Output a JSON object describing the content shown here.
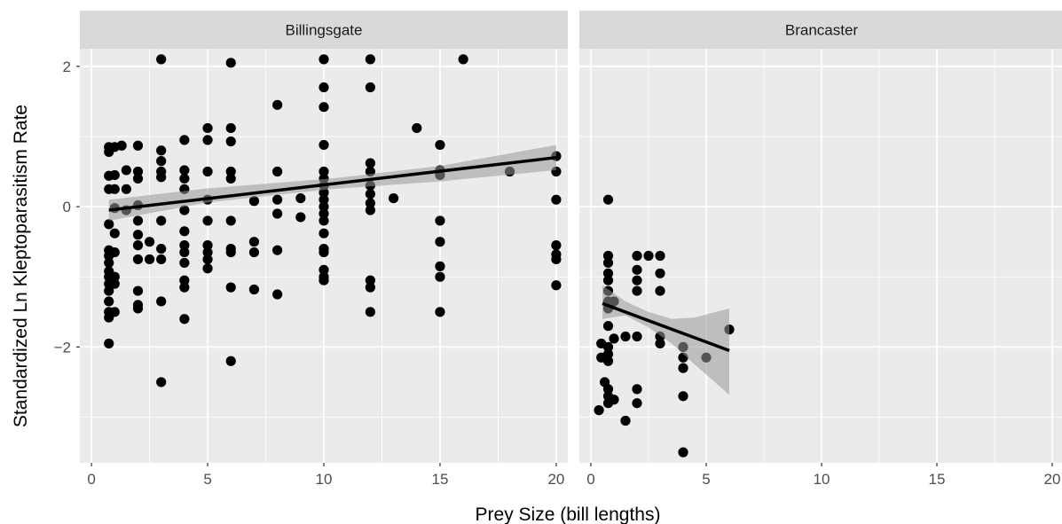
{
  "chart_data": {
    "type": "scatter",
    "facet_layout": "1 row x 2 columns, shared axes",
    "xlabel": "Prey Size (bill lengths)",
    "ylabel": "Standardized Ln Kleptoparasitism Rate",
    "xlim": [
      -0.5,
      20.5
    ],
    "ylim": [
      -3.65,
      2.25
    ],
    "x_ticks": [
      0,
      5,
      10,
      15,
      20
    ],
    "y_ticks": [
      -2,
      0,
      2
    ],
    "x_tick_labels": [
      "0",
      "5",
      "10",
      "15",
      "20"
    ],
    "y_tick_labels": [
      "−2",
      "0",
      "2"
    ],
    "grid": true,
    "background": "ggplot2 grey panel",
    "point_color": "#000000",
    "fit_line_color": "#000000",
    "ribbon_color": "#999999",
    "panel_bg_color": "#ebebeb",
    "strip_bg_color": "#d9d9d9",
    "panels": [
      {
        "strip_label": "Billingsgate",
        "points": [
          [
            0.75,
            0.85
          ],
          [
            0.75,
            0.78
          ],
          [
            0.75,
            0.44
          ],
          [
            0.75,
            0.25
          ],
          [
            0.75,
            -0.25
          ],
          [
            0.75,
            -0.62
          ],
          [
            0.75,
            -0.7
          ],
          [
            0.75,
            -0.8
          ],
          [
            0.75,
            -0.92
          ],
          [
            0.75,
            -1.0
          ],
          [
            0.75,
            -1.1
          ],
          [
            0.75,
            -1.2
          ],
          [
            0.75,
            -1.35
          ],
          [
            0.75,
            -1.5
          ],
          [
            0.75,
            -1.58
          ],
          [
            0.75,
            -1.95
          ],
          [
            1,
            0.85
          ],
          [
            1,
            0.45
          ],
          [
            1,
            0.25
          ],
          [
            1,
            -0.02
          ],
          [
            1,
            -0.38
          ],
          [
            1,
            -0.65
          ],
          [
            1,
            -1.0
          ],
          [
            1,
            -1.1
          ],
          [
            1,
            -1.5
          ],
          [
            1.3,
            0.87
          ],
          [
            1.5,
            0.52
          ],
          [
            1.5,
            0.25
          ],
          [
            1.5,
            -0.05
          ],
          [
            2,
            0.87
          ],
          [
            2,
            0.5
          ],
          [
            2,
            0.4
          ],
          [
            2,
            0.02
          ],
          [
            2,
            -0.2
          ],
          [
            2,
            -0.4
          ],
          [
            2,
            -0.55
          ],
          [
            2,
            -0.75
          ],
          [
            2,
            -1.2
          ],
          [
            2,
            -1.4
          ],
          [
            2,
            -1.45
          ],
          [
            2.5,
            -0.5
          ],
          [
            2.5,
            -0.75
          ],
          [
            3,
            2.1
          ],
          [
            3,
            0.8
          ],
          [
            3,
            0.65
          ],
          [
            3,
            0.5
          ],
          [
            3,
            0.42
          ],
          [
            3,
            -0.2
          ],
          [
            3,
            -0.6
          ],
          [
            3,
            -0.75
          ],
          [
            3,
            -1.35
          ],
          [
            3,
            -2.5
          ],
          [
            4,
            0.95
          ],
          [
            4,
            0.52
          ],
          [
            4,
            0.4
          ],
          [
            4,
            0.25
          ],
          [
            4,
            -0.05
          ],
          [
            4,
            -0.35
          ],
          [
            4,
            -0.55
          ],
          [
            4,
            -0.65
          ],
          [
            4,
            -0.8
          ],
          [
            4,
            -1.05
          ],
          [
            4,
            -1.15
          ],
          [
            4,
            -1.6
          ],
          [
            5,
            1.12
          ],
          [
            5,
            0.95
          ],
          [
            5,
            0.5
          ],
          [
            5,
            0.1
          ],
          [
            5,
            -0.2
          ],
          [
            5,
            -0.55
          ],
          [
            5,
            -0.65
          ],
          [
            5,
            -0.75
          ],
          [
            5,
            -0.88
          ],
          [
            6,
            2.05
          ],
          [
            6,
            1.12
          ],
          [
            6,
            0.93
          ],
          [
            6,
            0.5
          ],
          [
            6,
            0.4
          ],
          [
            6,
            -0.2
          ],
          [
            6,
            -0.6
          ],
          [
            6,
            -0.65
          ],
          [
            6,
            -1.15
          ],
          [
            6,
            -2.2
          ],
          [
            7,
            0.08
          ],
          [
            7,
            -0.5
          ],
          [
            7,
            -0.65
          ],
          [
            7,
            -1.18
          ],
          [
            8,
            1.45
          ],
          [
            8,
            0.5
          ],
          [
            8,
            0.1
          ],
          [
            8,
            -0.1
          ],
          [
            8,
            -0.62
          ],
          [
            8,
            -1.25
          ],
          [
            9,
            0.12
          ],
          [
            9,
            -0.15
          ],
          [
            10,
            2.1
          ],
          [
            10,
            1.7
          ],
          [
            10,
            1.42
          ],
          [
            10,
            0.88
          ],
          [
            10,
            0.5
          ],
          [
            10,
            0.4
          ],
          [
            10,
            0.3
          ],
          [
            10,
            0.2
          ],
          [
            10,
            0.1
          ],
          [
            10,
            0.0
          ],
          [
            10,
            -0.1
          ],
          [
            10,
            -0.2
          ],
          [
            10,
            -0.38
          ],
          [
            10,
            -0.6
          ],
          [
            10,
            -0.65
          ],
          [
            10,
            -0.9
          ],
          [
            10,
            -1.0
          ],
          [
            10,
            -1.05
          ],
          [
            12,
            2.1
          ],
          [
            12,
            1.7
          ],
          [
            12,
            0.62
          ],
          [
            12,
            0.5
          ],
          [
            12,
            0.3
          ],
          [
            12,
            0.18
          ],
          [
            12,
            0.05
          ],
          [
            12,
            -0.05
          ],
          [
            12,
            -1.05
          ],
          [
            12,
            -1.15
          ],
          [
            12,
            -1.5
          ],
          [
            13,
            0.12
          ],
          [
            14,
            1.12
          ],
          [
            15,
            0.88
          ],
          [
            15,
            0.52
          ],
          [
            15,
            0.45
          ],
          [
            15,
            -0.2
          ],
          [
            15,
            -0.5
          ],
          [
            15,
            -0.85
          ],
          [
            15,
            -1.0
          ],
          [
            15,
            -1.5
          ],
          [
            16,
            2.1
          ],
          [
            18,
            0.5
          ],
          [
            20,
            0.72
          ],
          [
            20,
            0.5
          ],
          [
            20,
            0.1
          ],
          [
            20,
            -0.55
          ],
          [
            20,
            -0.68
          ],
          [
            20,
            -0.75
          ],
          [
            20,
            -1.12
          ]
        ],
        "fit": {
          "x": [
            0.75,
            20
          ],
          "y": [
            -0.05,
            0.7
          ]
        },
        "ribbon": {
          "x": [
            0.75,
            5,
            10.3,
            15,
            20
          ],
          "lower": [
            -0.2,
            0.06,
            0.25,
            0.36,
            0.52
          ],
          "upper": [
            0.1,
            0.26,
            0.4,
            0.58,
            0.88
          ]
        }
      },
      {
        "strip_label": "Brancaster",
        "points": [
          [
            0.35,
            -2.9
          ],
          [
            0.45,
            -1.95
          ],
          [
            0.45,
            -2.15
          ],
          [
            0.6,
            -2.5
          ],
          [
            0.75,
            0.1
          ],
          [
            0.75,
            -0.7
          ],
          [
            0.75,
            -0.8
          ],
          [
            0.75,
            -0.95
          ],
          [
            0.75,
            -1.05
          ],
          [
            0.75,
            -1.2
          ],
          [
            0.75,
            -1.35
          ],
          [
            0.75,
            -1.45
          ],
          [
            0.75,
            -1.7
          ],
          [
            0.75,
            -2.0
          ],
          [
            0.75,
            -2.1
          ],
          [
            0.75,
            -2.2
          ],
          [
            0.75,
            -2.6
          ],
          [
            0.75,
            -2.7
          ],
          [
            0.75,
            -2.8
          ],
          [
            1,
            -1.35
          ],
          [
            1,
            -1.88
          ],
          [
            1,
            -2.75
          ],
          [
            1.5,
            -1.85
          ],
          [
            1.5,
            -3.05
          ],
          [
            2,
            -0.7
          ],
          [
            2,
            -0.9
          ],
          [
            2,
            -1.05
          ],
          [
            2,
            -1.2
          ],
          [
            2,
            -1.85
          ],
          [
            2,
            -2.6
          ],
          [
            2,
            -2.8
          ],
          [
            2.5,
            -0.7
          ],
          [
            3,
            -0.7
          ],
          [
            3,
            -0.95
          ],
          [
            3,
            -1.2
          ],
          [
            3,
            -1.85
          ],
          [
            3,
            -1.95
          ],
          [
            4,
            -2.0
          ],
          [
            4,
            -2.15
          ],
          [
            4,
            -2.3
          ],
          [
            4,
            -2.7
          ],
          [
            4,
            -3.5
          ],
          [
            5,
            -2.15
          ],
          [
            6,
            -1.75
          ]
        ],
        "fit": {
          "x": [
            0.5,
            6
          ],
          "y": [
            -1.38,
            -2.05
          ]
        },
        "ribbon": {
          "x": [
            0.5,
            1.5,
            2.5,
            3.5,
            4.5,
            6
          ],
          "lower": [
            -1.6,
            -1.55,
            -1.72,
            -1.95,
            -2.25,
            -2.68
          ],
          "upper": [
            -1.12,
            -1.35,
            -1.5,
            -1.6,
            -1.58,
            -1.45
          ]
        }
      }
    ]
  }
}
